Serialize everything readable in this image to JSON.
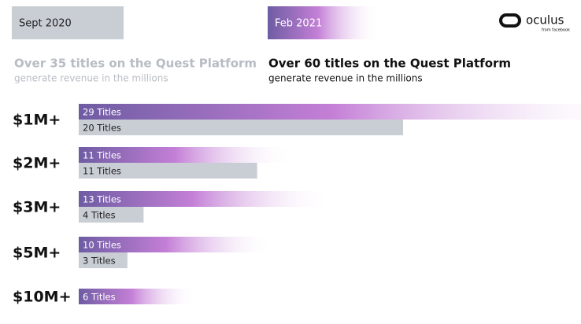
{
  "chart_data": {
    "type": "bar",
    "categories": [
      "$1M+",
      "$2M+",
      "$3M+",
      "$5M+",
      "$10M+"
    ],
    "series": [
      {
        "name": "Feb 2021",
        "color": "#6e5ca3",
        "headline": "Over 60 titles on the Quest Platform",
        "subheadline": "generate revenue in the millions",
        "values": [
          29,
          11,
          13,
          10,
          6
        ],
        "value_labels": [
          "29 Titles",
          "11 Titles",
          "13 Titles",
          "10 Titles",
          "6 Titles"
        ]
      },
      {
        "name": "Sept 2020",
        "color": "#c9cdd4",
        "headline": "Over 35 titles on the Quest Platform",
        "subheadline": "generate revenue in the millions",
        "values": [
          20,
          11,
          4,
          3,
          null
        ],
        "value_labels": [
          "20 Titles",
          "11 Titles",
          "4 Titles",
          "3 Titles",
          null
        ]
      }
    ],
    "logo": "oculus",
    "logo_tagline": "from facebook"
  }
}
